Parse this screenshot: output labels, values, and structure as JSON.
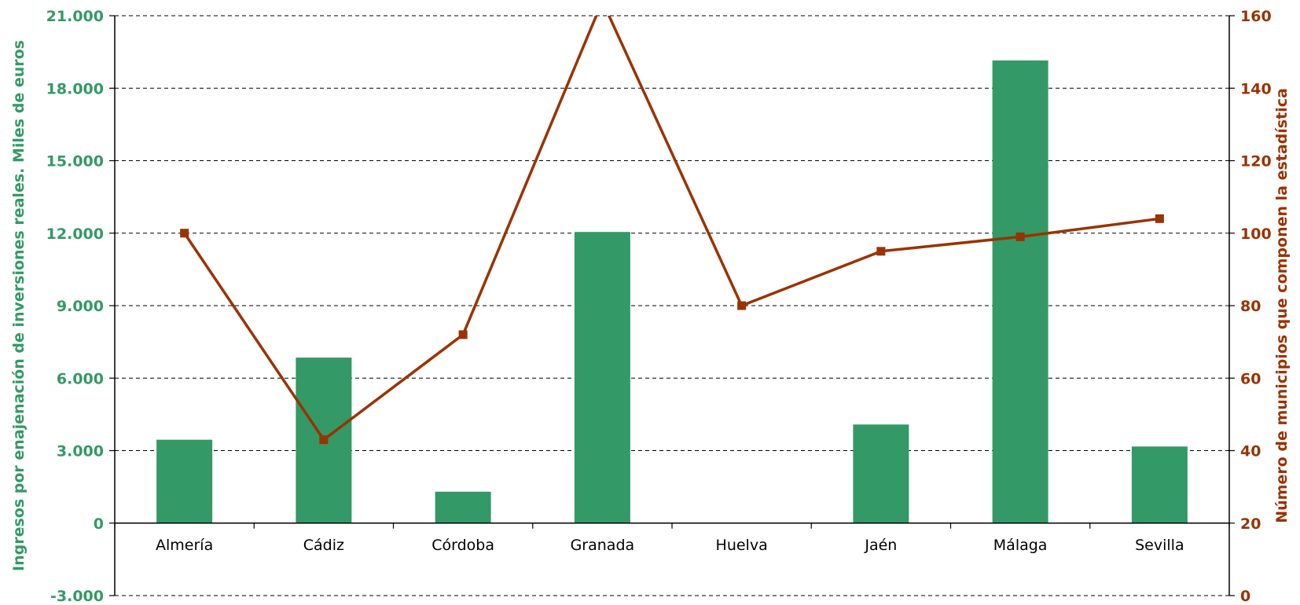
{
  "chart_data": {
    "type": "bar",
    "categories": [
      "Almería",
      "Cádiz",
      "Córdoba",
      "Granada",
      "Huelva",
      "Jaén",
      "Málaga",
      "Sevilla"
    ],
    "series": [
      {
        "type": "bar",
        "axis": "left",
        "color": "#339966",
        "values": [
          3450,
          6850,
          1300,
          12050,
          20,
          4080,
          19150,
          3170
        ]
      },
      {
        "type": "line",
        "axis": "right",
        "color": "#993300",
        "values": [
          100,
          43,
          72,
          164,
          80,
          95,
          99,
          104
        ]
      }
    ],
    "ylabel": "Ingresos por enajenación de inversiones reales. Miles de euros",
    "y2label": "Número de municipios que componen la estadística",
    "ylim": [
      -3000,
      21000
    ],
    "y2lim": [
      0,
      160
    ],
    "yticks": [
      "-3.000",
      "0",
      "3.000",
      "6.000",
      "9.000",
      "12.000",
      "15.000",
      "18.000",
      "21.000"
    ],
    "y2ticks": [
      "0",
      "20",
      "40",
      "60",
      "80",
      "100",
      "120",
      "140",
      "160"
    ],
    "grid": true,
    "legend": "none"
  }
}
